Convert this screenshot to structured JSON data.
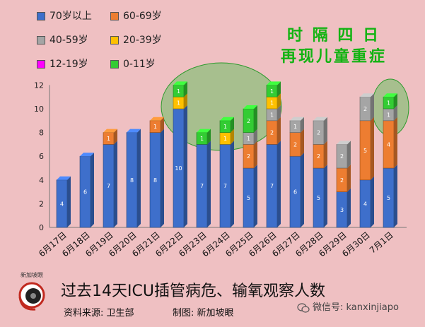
{
  "headline": [
    "时 隔 四 日",
    "再现儿童重症"
  ],
  "caption": "过去14天ICU插管病危、输氧观察人数",
  "source_label": "资料来源:  卫生部",
  "maker_label": "制图:  新加坡眼",
  "wechat_label": "微信号: kanxinjiapo",
  "logo_text": "新加坡眼",
  "colors": {
    "70岁以上": "#3e6fcb",
    "60-69岁": "#ed7d31",
    "40-59岁": "#a5a5a5",
    "20-39岁": "#ffc000",
    "12-19岁": "#ff00ff",
    "0-11岁": "#33cc33"
  },
  "chart_data": {
    "type": "bar",
    "stacked": true,
    "title": "过去14天ICU插管病危、输氧观察人数",
    "categories": [
      "6月17日",
      "6月18日",
      "6月19日",
      "6月20日",
      "6月21日",
      "6月22日",
      "6月23日",
      "6月24日",
      "6月25日",
      "6月26日",
      "6月27日",
      "6月28日",
      "6月29日",
      "6月30日",
      "7月1日"
    ],
    "ylim": [
      0,
      12
    ],
    "yticks": [
      0,
      2,
      4,
      6,
      8,
      10,
      12
    ],
    "legend_position": "top-left",
    "series": [
      {
        "name": "70岁以上",
        "values": [
          4,
          6,
          7,
          8,
          8,
          10,
          7,
          7,
          5,
          7,
          6,
          5,
          3,
          4,
          5
        ]
      },
      {
        "name": "60-69岁",
        "values": [
          0,
          0,
          1,
          0,
          1,
          0,
          0,
          0,
          2,
          2,
          2,
          2,
          2,
          5,
          4
        ]
      },
      {
        "name": "40-59岁",
        "values": [
          0,
          0,
          0,
          0,
          0,
          0,
          0,
          0,
          1,
          1,
          1,
          2,
          2,
          2,
          1
        ]
      },
      {
        "name": "20-39岁",
        "values": [
          0,
          0,
          0,
          0,
          0,
          1,
          0,
          1,
          0,
          1,
          0,
          0,
          0,
          0,
          0
        ]
      },
      {
        "name": "12-19岁",
        "values": [
          0,
          0,
          0,
          0,
          0,
          0,
          0,
          0,
          0,
          0,
          0,
          0,
          0,
          0,
          0
        ]
      },
      {
        "name": "0-11岁",
        "values": [
          0,
          0,
          0,
          0,
          0,
          1,
          1,
          1,
          2,
          1,
          0,
          0,
          0,
          0,
          1
        ]
      }
    ]
  }
}
